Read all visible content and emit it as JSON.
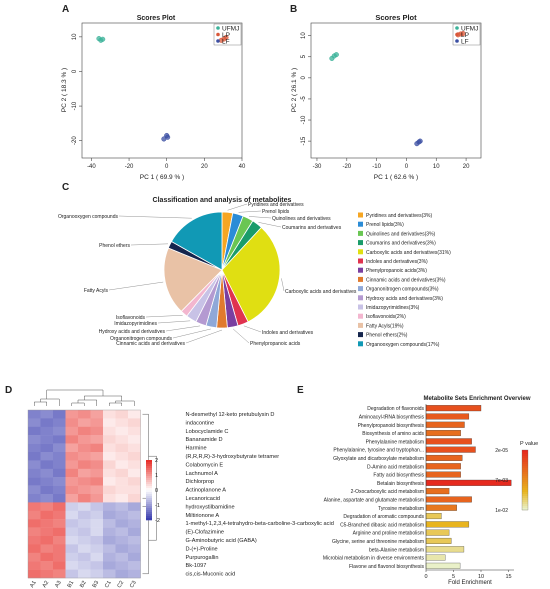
{
  "panel_labels": [
    "A",
    "B",
    "C",
    "D",
    "E"
  ],
  "chart_data": [
    {
      "panel": "A",
      "type": "scatter",
      "title": "Scores Plot",
      "xlabel": "PC 1 ( 69.9 % )",
      "ylabel": "PC 2 ( 18.3 % )",
      "xlim": [
        -45,
        40
      ],
      "ylim": [
        -25,
        14
      ],
      "xticks": [
        -40,
        -20,
        0,
        20,
        40
      ],
      "yticks": [
        10,
        0,
        -10,
        -20
      ],
      "legend": [
        "UFMJ",
        "LP",
        "LF"
      ],
      "legend_position": "top-right",
      "series": [
        {
          "name": "UFMJ",
          "color": "#3cb39a",
          "points": [
            [
              -36,
              9.5
            ],
            [
              -35,
              9.0
            ],
            [
              -34,
              9.3
            ]
          ]
        },
        {
          "name": "LP",
          "color": "#d9583a",
          "points": [
            [
              29,
              9.0
            ],
            [
              30.5,
              9.4
            ],
            [
              31.5,
              9.8
            ]
          ]
        },
        {
          "name": "LF",
          "color": "#3b4fa3",
          "points": [
            [
              -1.5,
              -19.5
            ],
            [
              0,
              -18.5
            ],
            [
              0.5,
              -19.0
            ]
          ]
        }
      ]
    },
    {
      "panel": "B",
      "type": "scatter",
      "title": "Scores Plot",
      "xlabel": "PC 1 ( 62.6 % )",
      "ylabel": "PC 2 ( 26.1 % )",
      "xlim": [
        -32,
        25
      ],
      "ylim": [
        -19,
        13
      ],
      "xticks": [
        -30,
        -20,
        -10,
        0,
        10,
        20
      ],
      "yticks": [
        10,
        5,
        0,
        -5,
        -10,
        -15
      ],
      "legend": [
        "UFMJ",
        "LP",
        "LF"
      ],
      "legend_position": "top-right",
      "series": [
        {
          "name": "UFMJ",
          "color": "#3cb39a",
          "points": [
            [
              -25,
              4.6
            ],
            [
              -24.2,
              5.2
            ],
            [
              -23.5,
              5.5
            ]
          ]
        },
        {
          "name": "LP",
          "color": "#d9583a",
          "points": [
            [
              17.3,
              10.2
            ],
            [
              18.2,
              10.4
            ],
            [
              19,
              10.5
            ]
          ]
        },
        {
          "name": "LF",
          "color": "#3b4fa3",
          "points": [
            [
              3.5,
              -15.6
            ],
            [
              4.2,
              -15.2
            ],
            [
              4.6,
              -15.0
            ]
          ]
        }
      ]
    },
    {
      "panel": "C",
      "type": "pie",
      "title": "Classification and analysis of metabolites",
      "labels": [
        "Pyridines and derivatives",
        "Prenol lipids",
        "Quinolines and derivatives",
        "Coumarins and derivatives",
        "Carboxylic acids and derivatives",
        "Indoles and derivatives",
        "Phenylpropanoic acids",
        "Cinnamic acids and derivatives",
        "Organonitrogen compounds",
        "Hydroxy acids and derivatives",
        "Imidazopyrimidines",
        "Isoflavonoids",
        "Fatty Acyls",
        "Phenol ethers",
        "Organooxygen compounds"
      ],
      "values": [
        3,
        3,
        3,
        3,
        31,
        3,
        3,
        3,
        3,
        3,
        3,
        2,
        19,
        2,
        17
      ],
      "colors": [
        "#f6a623",
        "#2b8cd6",
        "#6ac653",
        "#1a9c6a",
        "#e0df12",
        "#e0334f",
        "#7a3fa0",
        "#e07a2e",
        "#8fa8d8",
        "#b49ad1",
        "#c8c2e6",
        "#f3b6cf",
        "#e9c2a6",
        "#15254d",
        "#1199b5"
      ],
      "legend": [
        "Pyridines and derivatives(3%)",
        "Prenol lipids(3%)",
        "Quinolines and derivatives(3%)",
        "Coumarins and derivatives(3%)",
        "Carboxylic acids and derivatives(31%)",
        "Indoles and derivatives(3%)",
        "Phenylpropanoic acids(3%)",
        "Cinnamic acids and derivatives(3%)",
        "Organonitrogen compounds(3%)",
        "Hydroxy acids and derivatives(3%)",
        "Imidazopyrimidines(3%)",
        "Isoflavonoids(2%)",
        "Fatty Acyls(19%)",
        "Phenol ethers(2%)",
        "Organooxygen compounds(17%)"
      ],
      "legend_position": "right"
    },
    {
      "panel": "D",
      "type": "heatmap",
      "columns": [
        "A1",
        "A2",
        "A3",
        "B1",
        "B2",
        "B3",
        "C1",
        "C2",
        "C3"
      ],
      "rows": [
        "N-desmethyl 12-keto pretubulysin D",
        "indacontine",
        "Lobocyclamide C",
        "Bananamide D",
        "Harmine",
        "(R,R,R,R)-3-hydroxybutyrate tetramer",
        "Colabomycin E",
        "Lachnumol A",
        "Dichlorprop",
        "Actinoplanone A",
        "Lecanoricacid",
        "hydroxystilbamidine",
        "Miltirionone A",
        "1-methyl-1,2,3,4-tetrahydro-beta-carboline-3-carboxylic acid",
        "(E)-Clofazimine",
        "G-Aminobutyric acid (GABA)",
        "D-(+)-Proline",
        "Purpurogallin",
        "Bk-1097",
        "cis,cis-Muconic acid"
      ],
      "values": [
        [
          -1.3,
          -1.2,
          -1.4,
          1.0,
          1.1,
          0.9,
          0.3,
          0.4,
          0.2
        ],
        [
          -1.2,
          -1.4,
          -1.3,
          1.1,
          0.9,
          1.0,
          0.2,
          0.3,
          0.4
        ],
        [
          -1.4,
          -1.3,
          -1.2,
          1.0,
          1.2,
          1.1,
          0.3,
          0.2,
          0.3
        ],
        [
          -1.2,
          -1.3,
          -1.4,
          1.2,
          1.0,
          0.9,
          0.4,
          0.3,
          0.2
        ],
        [
          -1.3,
          -1.4,
          -1.2,
          0.9,
          1.1,
          1.2,
          0.3,
          0.4,
          0.3
        ],
        [
          -1.4,
          -1.2,
          -1.3,
          1.1,
          1.0,
          0.9,
          0.2,
          0.3,
          0.4
        ],
        [
          -1.2,
          -1.4,
          -1.3,
          1.0,
          1.2,
          1.1,
          0.4,
          0.2,
          0.3
        ],
        [
          -1.3,
          -1.2,
          -1.4,
          1.2,
          0.9,
          1.0,
          0.3,
          0.4,
          0.2
        ],
        [
          -1.4,
          -1.3,
          -1.2,
          1.0,
          1.1,
          1.2,
          0.2,
          0.3,
          0.4
        ],
        [
          -1.2,
          -1.4,
          -1.3,
          1.1,
          1.0,
          0.9,
          0.4,
          0.3,
          0.3
        ],
        [
          -1.3,
          -1.2,
          -1.4,
          0.9,
          1.2,
          1.0,
          0.3,
          0.2,
          0.4
        ],
        [
          1.3,
          1.2,
          1.4,
          -0.5,
          -0.4,
          -0.6,
          -0.8,
          -0.7,
          -0.9
        ],
        [
          1.2,
          1.4,
          1.3,
          -0.4,
          -0.6,
          -0.5,
          -0.9,
          -0.8,
          -0.7
        ],
        [
          1.4,
          1.3,
          1.2,
          -0.6,
          -0.5,
          -0.4,
          -0.7,
          -0.9,
          -0.8
        ],
        [
          1.2,
          1.3,
          1.4,
          -0.5,
          -0.6,
          -0.4,
          -0.8,
          -0.7,
          -0.9
        ],
        [
          1.3,
          1.4,
          1.2,
          -0.4,
          -0.5,
          -0.6,
          -0.9,
          -0.8,
          -0.7
        ],
        [
          1.4,
          1.2,
          1.3,
          -0.6,
          -0.4,
          -0.5,
          -0.7,
          -0.9,
          -0.8
        ],
        [
          1.2,
          1.4,
          1.3,
          -0.5,
          -0.6,
          -0.4,
          -0.8,
          -0.7,
          -0.9
        ],
        [
          1.3,
          1.2,
          1.4,
          -0.4,
          -0.5,
          -0.6,
          -0.9,
          -0.8,
          -0.7
        ],
        [
          1.4,
          1.3,
          1.2,
          -0.6,
          -0.4,
          -0.5,
          -0.7,
          -0.9,
          -0.8
        ]
      ],
      "color_scale": {
        "min": -2,
        "max": 2,
        "low": "#3c3fb0",
        "mid": "#ffffff",
        "high": "#e8302a",
        "ticks": [
          2,
          1,
          0,
          -1,
          -2
        ]
      }
    },
    {
      "panel": "E",
      "type": "bar",
      "orientation": "horizontal",
      "title": "Metabolite Sets Enrichment Overview",
      "xlabel": "Fold Enrichment",
      "xlim": [
        0,
        16
      ],
      "xticks": [
        0,
        5,
        10,
        15
      ],
      "categories": [
        "Degradation of flavonoids",
        "Aminoacyl-tRNA biosynthesis",
        "Phenylpropanoid biosynthesis",
        "Biosynthesis of amino acids",
        "Phenylalanine metabolism",
        "Phenylalanine, tyrosine and tryptophan...",
        "Glyoxylate and dicarboxylate metabolism",
        "D-Amino acid metabolism",
        "Fatty acid biosynthesis",
        "Betalain biosynthesis",
        "2-Oxocarboxylic acid metabolism",
        "Alanine, aspartate and glutamate metabolism",
        "Tyrosine metabolism",
        "Degradation of aromatic compounds",
        "C5-Branched dibasic acid metabolism",
        "Arginine and proline metabolism",
        "Glycine, serine and threonine metabolism",
        "beta-Alanine metabolism",
        "Microbial metabolism in diverse environments",
        "Flavone and flavonol biosynthesis"
      ],
      "values": [
        10,
        7.8,
        7.0,
        6.3,
        8.3,
        9.0,
        6.6,
        6.3,
        6.3,
        15.5,
        4.2,
        8.3,
        5.6,
        2.8,
        7.8,
        4.2,
        4.6,
        6.9,
        3.5,
        6.2
      ],
      "p_values": [
        0.002,
        0.0025,
        0.003,
        0.0035,
        0.002,
        0.002,
        0.003,
        0.003,
        0.003,
        0.0001,
        0.0035,
        0.003,
        0.004,
        0.008,
        0.007,
        0.008,
        0.008,
        0.009,
        0.0095,
        0.01
      ],
      "legend_title": "P value",
      "legend_ticks": [
        "2e-05",
        "7e-03",
        "1e-02"
      ],
      "legend_position": "right"
    }
  ]
}
